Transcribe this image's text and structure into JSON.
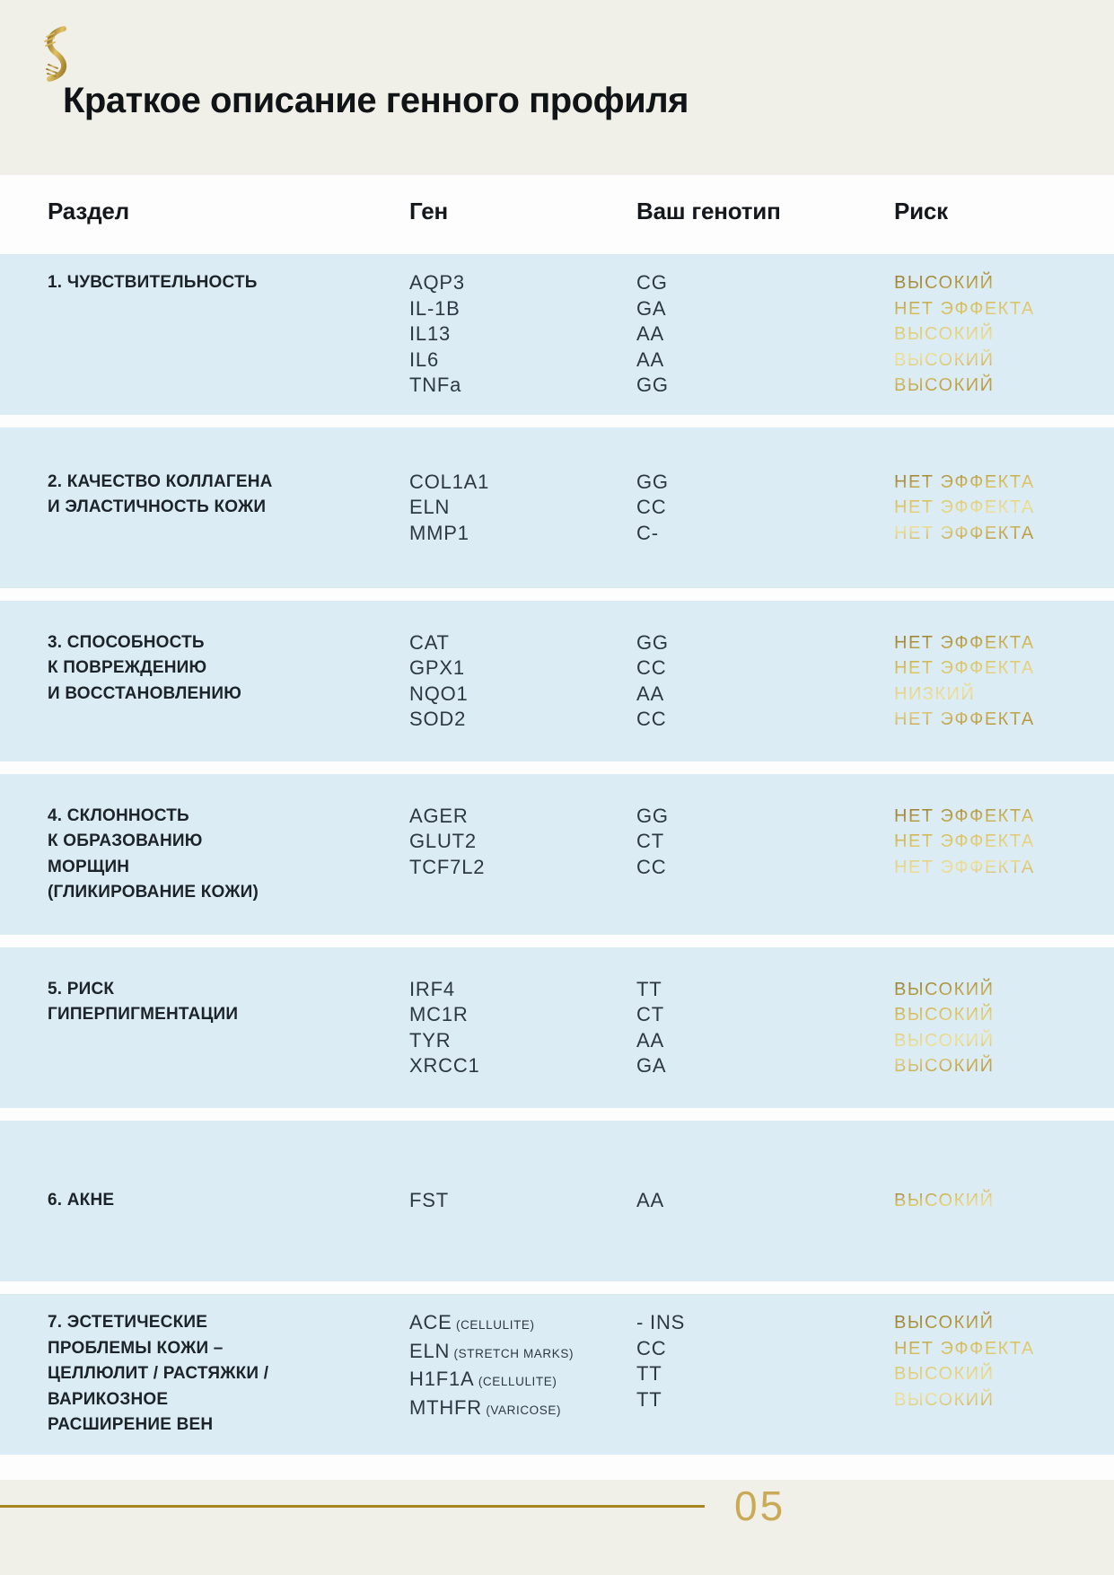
{
  "page": {
    "title": "Краткое описание генного профиля",
    "page_number": "05"
  },
  "icons": {
    "logo": "gold-dna-helix"
  },
  "table": {
    "headers": {
      "section": "Раздел",
      "gene": "Ген",
      "genotype": "Ваш генотип",
      "risk": "Риск"
    },
    "sections": [
      {
        "title_lines": [
          "1. ЧУВСТВИТЕЛЬНОСТЬ"
        ],
        "rows": [
          {
            "gene": "AQP3",
            "note": "",
            "genotype": "CG",
            "risk": "ВЫСОКИЙ"
          },
          {
            "gene": "IL-1B",
            "note": "",
            "genotype": "GA",
            "risk": "НЕТ ЭФФЕКТА"
          },
          {
            "gene": "IL13",
            "note": "",
            "genotype": "AA",
            "risk": "ВЫСОКИЙ"
          },
          {
            "gene": "IL6",
            "note": "",
            "genotype": "AA",
            "risk": "ВЫСОКИЙ"
          },
          {
            "gene": "TNFa",
            "note": "",
            "genotype": "GG",
            "risk": "ВЫСОКИЙ"
          }
        ]
      },
      {
        "title_lines": [
          "2. КАЧЕСТВО КОЛЛАГЕНА",
          "И ЭЛАСТИЧНОСТЬ КОЖИ"
        ],
        "rows": [
          {
            "gene": "COL1A1",
            "note": "",
            "genotype": "GG",
            "risk": "НЕТ ЭФФЕКТА"
          },
          {
            "gene": "ELN",
            "note": "",
            "genotype": "CC",
            "risk": "НЕТ ЭФФЕКТА"
          },
          {
            "gene": "MMP1",
            "note": "",
            "genotype": "C-",
            "risk": "НЕТ ЭФФЕКТА"
          }
        ]
      },
      {
        "title_lines": [
          "3. СПОСОБНОСТЬ",
          "К ПОВРЕЖДЕНИЮ",
          "И ВОССТАНОВЛЕНИЮ"
        ],
        "rows": [
          {
            "gene": "CAT",
            "note": "",
            "genotype": "GG",
            "risk": "НЕТ ЭФФЕКТА"
          },
          {
            "gene": "GPX1",
            "note": "",
            "genotype": "CC",
            "risk": "НЕТ ЭФФЕКТА"
          },
          {
            "gene": "NQO1",
            "note": "",
            "genotype": "AA",
            "risk": "НИЗКИЙ"
          },
          {
            "gene": "SOD2",
            "note": "",
            "genotype": "CC",
            "risk": "НЕТ ЭФФЕКТА"
          }
        ]
      },
      {
        "title_lines": [
          "4. СКЛОННОСТЬ",
          "К ОБРАЗОВАНИЮ",
          "МОРЩИН",
          "(ГЛИКИРОВАНИЕ КОЖИ)"
        ],
        "rows": [
          {
            "gene": "AGER",
            "note": "",
            "genotype": "GG",
            "risk": "НЕТ ЭФФЕКТА"
          },
          {
            "gene": "GLUT2",
            "note": "",
            "genotype": "CT",
            "risk": "НЕТ ЭФФЕКТА"
          },
          {
            "gene": "TCF7L2",
            "note": "",
            "genotype": "CC",
            "risk": "НЕТ ЭФФЕКТА"
          }
        ]
      },
      {
        "title_lines": [
          "5. РИСК",
          "ГИПЕРПИГМЕНТАЦИИ"
        ],
        "rows": [
          {
            "gene": "IRF4",
            "note": "",
            "genotype": "TT",
            "risk": "ВЫСОКИЙ"
          },
          {
            "gene": "MC1R",
            "note": "",
            "genotype": "CT",
            "risk": "ВЫСОКИЙ"
          },
          {
            "gene": "TYR",
            "note": "",
            "genotype": "AA",
            "risk": "ВЫСОКИЙ"
          },
          {
            "gene": "XRCC1",
            "note": "",
            "genotype": "GA",
            "risk": "ВЫСОКИЙ"
          }
        ]
      },
      {
        "title_lines": [
          "6. АКНЕ"
        ],
        "rows": [
          {
            "gene": "FST",
            "note": "",
            "genotype": "AA",
            "risk": "ВЫСОКИЙ"
          }
        ]
      },
      {
        "title_lines": [
          "7. ЭСТЕТИЧЕСКИЕ",
          "ПРОБЛЕМЫ КОЖИ –",
          "ЦЕЛЛЮЛИТ / РАСТЯЖКИ /",
          "ВАРИКОЗНОЕ",
          "РАСШИРЕНИЕ ВЕН"
        ],
        "rows": [
          {
            "gene": "ACE",
            "note": "(CELLULITE)",
            "genotype": "- INS",
            "risk": "ВЫСОКИЙ"
          },
          {
            "gene": "ELN",
            "note": "(STRETCH MARKS)",
            "genotype": "CC",
            "risk": "НЕТ ЭФФЕКТА"
          },
          {
            "gene": "H1F1A",
            "note": "(CELLULITE)",
            "genotype": "TT",
            "risk": "ВЫСОКИЙ"
          },
          {
            "gene": "MTHFR",
            "note": "(VARICOSE)",
            "genotype": "TT",
            "risk": "ВЫСОКИЙ"
          }
        ]
      }
    ]
  },
  "colors": {
    "cream": "#f0efe8",
    "band_blue": "#dcecf5",
    "text_dark": "#1c2429",
    "gene_text": "#2c3842",
    "gold_dark": "#8f742c",
    "gold_light": "#eee09a",
    "footer_line_gold": "#a8861f",
    "page_number_gold": "#c9ab55"
  }
}
